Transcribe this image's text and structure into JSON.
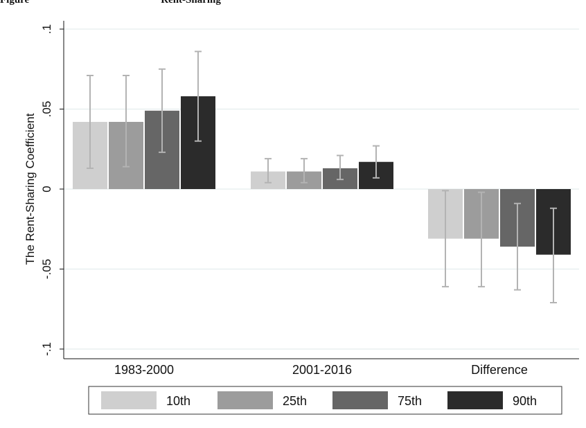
{
  "caption": {
    "left": "Figure",
    "right": "Rent-Sharing"
  },
  "chart_data": {
    "type": "bar",
    "title": "",
    "xlabel": "",
    "ylabel": "The Rent-Sharing Coefficient",
    "ylim": [
      -0.1,
      0.1
    ],
    "yticks": [
      -0.1,
      -0.05,
      0,
      0.05,
      0.1
    ],
    "ytick_labels": [
      "-.1",
      "-.05",
      "0",
      ".05",
      ".1"
    ],
    "categories": [
      "1983-2000",
      "2001-2016",
      "Difference"
    ],
    "series": [
      {
        "name": "10th",
        "color": "#cfcfcf",
        "values": [
          0.042,
          0.011,
          -0.031
        ],
        "ci_low": [
          0.013,
          0.004,
          -0.061
        ],
        "ci_high": [
          0.071,
          0.019,
          -0.001
        ]
      },
      {
        "name": "25th",
        "color": "#9c9c9c",
        "values": [
          0.042,
          0.011,
          -0.031
        ],
        "ci_low": [
          0.014,
          0.004,
          -0.061
        ],
        "ci_high": [
          0.071,
          0.019,
          -0.002
        ]
      },
      {
        "name": "75th",
        "color": "#666666",
        "values": [
          0.049,
          0.013,
          -0.036
        ],
        "ci_low": [
          0.023,
          0.006,
          -0.063
        ],
        "ci_high": [
          0.075,
          0.021,
          -0.009
        ]
      },
      {
        "name": "90th",
        "color": "#2b2b2b",
        "values": [
          0.058,
          0.017,
          -0.041
        ],
        "ci_low": [
          0.03,
          0.007,
          -0.071
        ],
        "ci_high": [
          0.086,
          0.027,
          -0.012
        ]
      }
    ],
    "grid": true,
    "legend_position": "bottom"
  }
}
